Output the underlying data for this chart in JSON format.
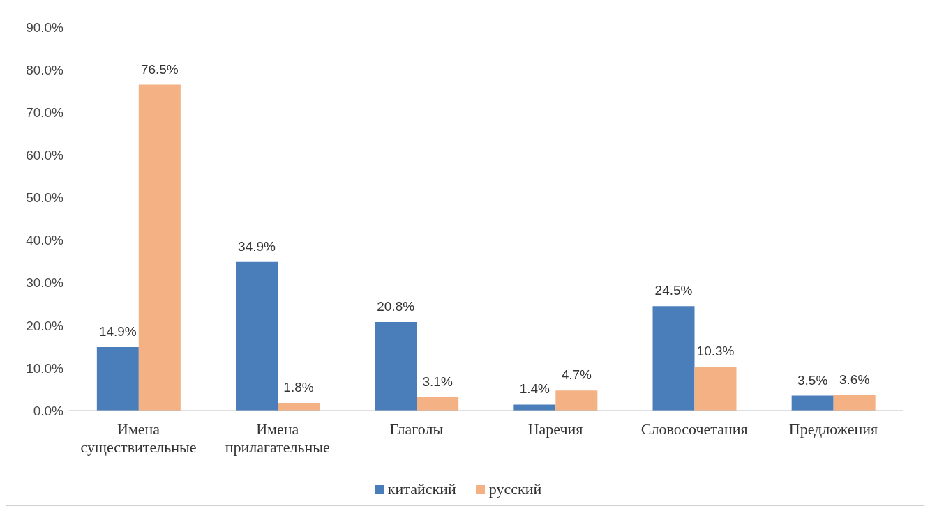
{
  "chart_data": {
    "type": "bar",
    "categories": [
      "Имена существительные",
      "Имена прилагательные",
      "Глаголы",
      "Наречия",
      "Словосочетания",
      "Предложения"
    ],
    "series": [
      {
        "name": "китайский",
        "color": "#4a7ebb",
        "values": [
          14.9,
          34.9,
          20.8,
          1.4,
          24.5,
          3.5
        ],
        "value_labels": [
          "14.9%",
          "34.9%",
          "20.8%",
          "1.4%",
          "24.5%",
          "3.5%"
        ]
      },
      {
        "name": "русский",
        "color": "#f4b183",
        "values": [
          76.5,
          1.8,
          3.1,
          4.7,
          10.3,
          3.6
        ],
        "value_labels": [
          "76.5%",
          "1.8%",
          "3.1%",
          "4.7%",
          "10.3%",
          "3.6%"
        ]
      }
    ],
    "ylim": [
      0,
      90
    ],
    "yticks": [
      {
        "value": 0,
        "label": "0.0%"
      },
      {
        "value": 10,
        "label": "10.0%"
      },
      {
        "value": 20,
        "label": "20.0%"
      },
      {
        "value": 30,
        "label": "30.0%"
      },
      {
        "value": 40,
        "label": "40.0%"
      },
      {
        "value": 50,
        "label": "50.0%"
      },
      {
        "value": 60,
        "label": "60.0%"
      },
      {
        "value": 70,
        "label": "70.0%"
      },
      {
        "value": 80,
        "label": "80.0%"
      },
      {
        "value": 90,
        "label": "90.0%"
      }
    ],
    "grid": false,
    "legend": "bottom"
  }
}
